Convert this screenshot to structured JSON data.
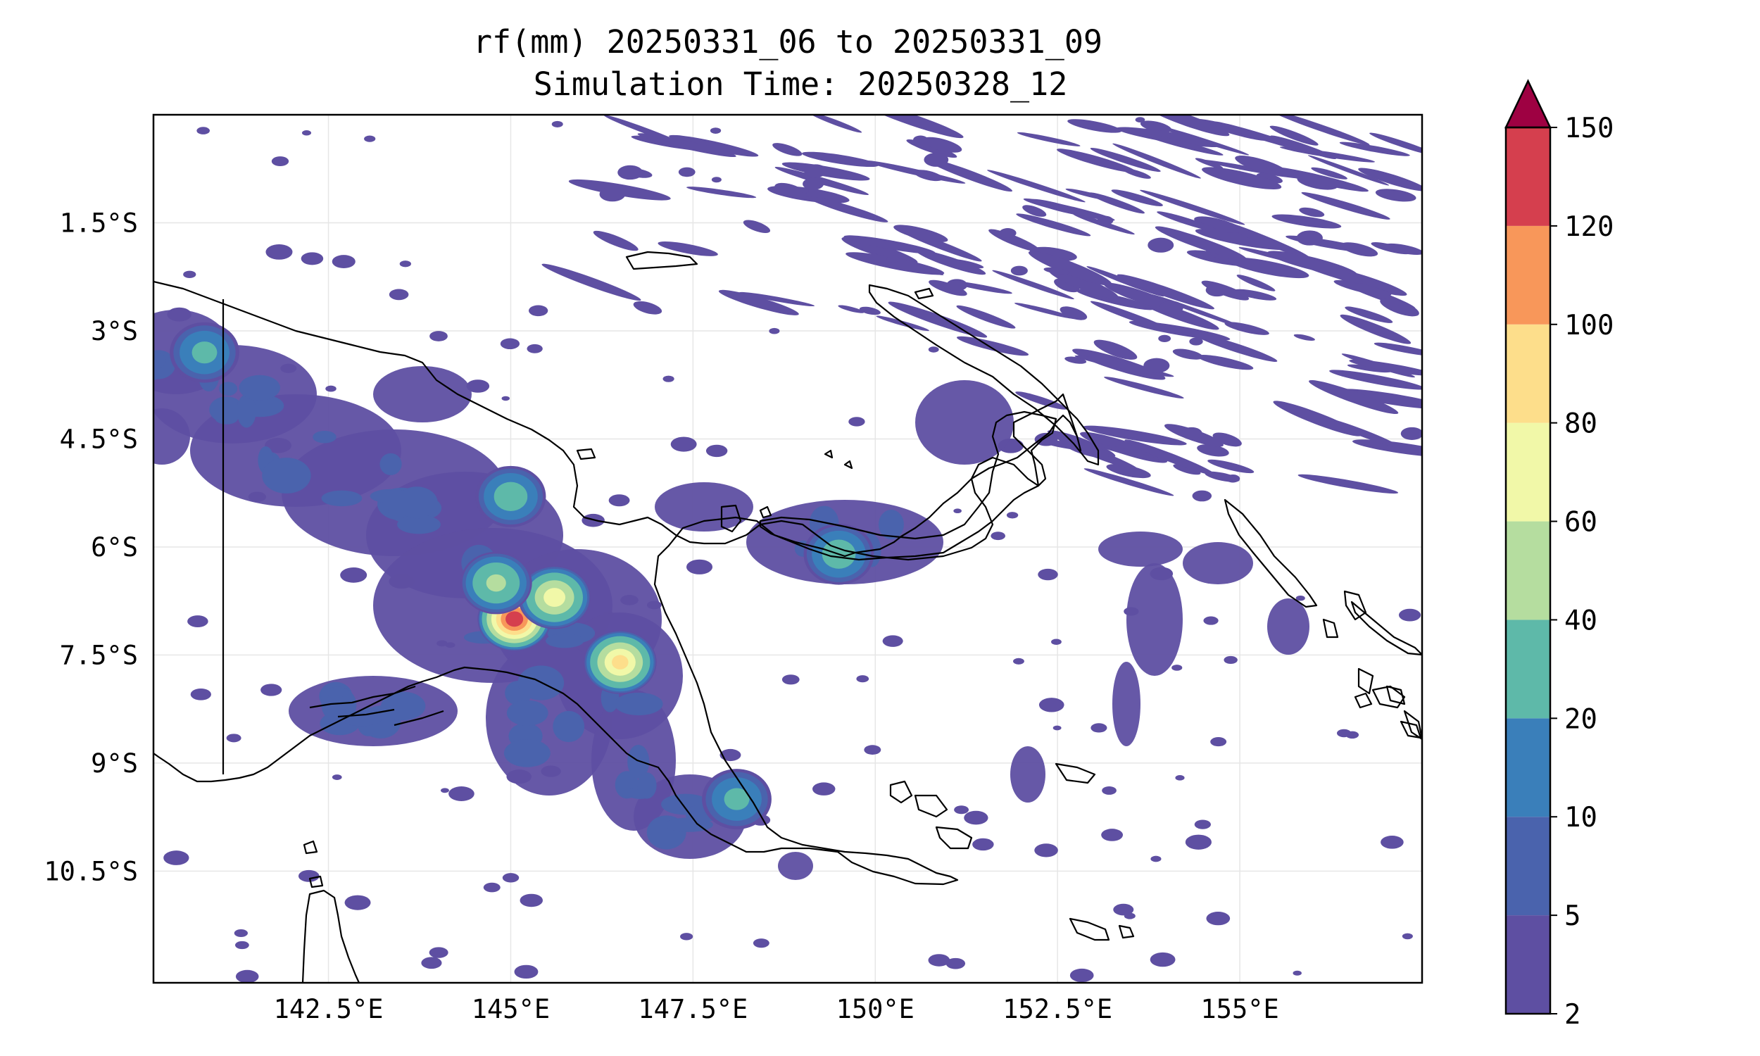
{
  "title": {
    "line1": "rf(mm) 20250331_06 to 20250331_09",
    "line2": "Simulation Time: 20250328_12"
  },
  "map": {
    "lon_range": [
      140.1,
      157.5
    ],
    "lat_range": [
      -12.05,
      0.0
    ],
    "gridlines": true,
    "lon_ticks": [
      {
        "value": 142.5,
        "label": "142.5°E"
      },
      {
        "value": 145.0,
        "label": "145°E"
      },
      {
        "value": 147.5,
        "label": "147.5°E"
      },
      {
        "value": 150.0,
        "label": "150°E"
      },
      {
        "value": 152.5,
        "label": "152.5°E"
      },
      {
        "value": 155.0,
        "label": "155°E"
      }
    ],
    "lat_ticks": [
      {
        "value": -1.5,
        "label": "1.5°S"
      },
      {
        "value": -3.0,
        "label": "3°S"
      },
      {
        "value": -4.5,
        "label": "4.5°S"
      },
      {
        "value": -6.0,
        "label": "6°S"
      },
      {
        "value": -7.5,
        "label": "7.5°S"
      },
      {
        "value": -9.0,
        "label": "9°S"
      },
      {
        "value": -10.5,
        "label": "10.5°S"
      }
    ],
    "rain_peaks_mm": [
      {
        "lon": 145.05,
        "lat": -7.0,
        "value": 130
      },
      {
        "lon": 145.6,
        "lat": -6.7,
        "value": 70
      },
      {
        "lon": 146.5,
        "lat": -7.6,
        "value": 85
      },
      {
        "lon": 144.8,
        "lat": -6.5,
        "value": 45
      },
      {
        "lon": 149.5,
        "lat": -6.1,
        "value": 30
      },
      {
        "lon": 140.8,
        "lat": -3.3,
        "value": 25
      },
      {
        "lon": 145.0,
        "lat": -5.3,
        "value": 30
      },
      {
        "lon": 148.1,
        "lat": -9.5,
        "value": 25
      }
    ]
  },
  "colorbar": {
    "title": "",
    "extend": "max",
    "boundaries": [
      2,
      5,
      10,
      20,
      40,
      60,
      80,
      100,
      120,
      150
    ],
    "labels": [
      "2",
      "5",
      "10",
      "20",
      "40",
      "60",
      "80",
      "100",
      "120",
      "150"
    ],
    "colors": [
      "#5e4fa2",
      "#4a63ad",
      "#3a7fba",
      "#5eb9a9",
      "#b5dd9f",
      "#f1f8a8",
      "#fdde8b",
      "#f8975a",
      "#d53f4e"
    ],
    "extend_color": "#9e0142"
  },
  "colors": {
    "coast": "#000000",
    "grid": "#e6e6e6",
    "frame": "#000000"
  }
}
